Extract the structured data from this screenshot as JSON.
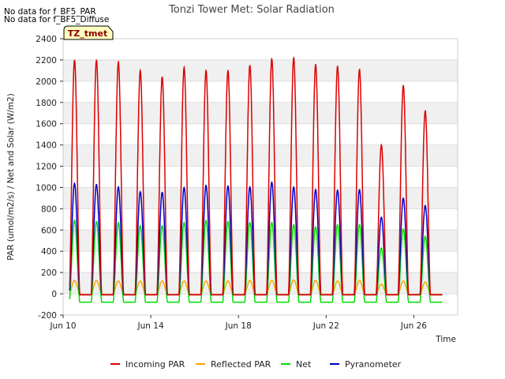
{
  "notes": [
    "No data for f_BF5_PAR",
    "No data for f_BF5_Diffuse"
  ],
  "tag": "TZ_tmet",
  "chart_data": {
    "type": "line",
    "title": "Tonzi Tower Met: Solar Radiation",
    "xlabel": "Time",
    "ylabel": "PAR (umol/m2/s) / Net and Solar (W/m2)",
    "ylim": [
      -200,
      2400
    ],
    "yticks": [
      -200,
      0,
      200,
      400,
      600,
      800,
      1000,
      1200,
      1400,
      1600,
      1800,
      2000,
      2200,
      2400
    ],
    "xlim": [
      "Jun 10",
      "Jun 28"
    ],
    "xticks": [
      "Jun 10",
      "Jun 14",
      "Jun 18",
      "Jun 22",
      "Jun 26"
    ],
    "grid": true,
    "legend_position": "bottom",
    "days": [
      "Jun 10",
      "Jun 11",
      "Jun 12",
      "Jun 13",
      "Jun 14",
      "Jun 15",
      "Jun 16",
      "Jun 17",
      "Jun 18",
      "Jun 19",
      "Jun 20",
      "Jun 21",
      "Jun 22",
      "Jun 23",
      "Jun 24",
      "Jun 25",
      "Jun 26",
      "Jun 27"
    ],
    "series": [
      {
        "name": "Incoming PAR",
        "color": "#dd0000",
        "night": -10,
        "daily_peak": [
          2200,
          2200,
          2180,
          2100,
          2040,
          2130,
          2100,
          2100,
          2150,
          2210,
          2220,
          2160,
          2140,
          2110,
          1400,
          1960,
          1720,
          0
        ]
      },
      {
        "name": "Reflected PAR",
        "color": "#ffa500",
        "night": -5,
        "daily_peak": [
          125,
          125,
          120,
          120,
          120,
          120,
          120,
          120,
          125,
          125,
          130,
          125,
          120,
          125,
          90,
          120,
          110,
          0
        ]
      },
      {
        "name": "Net",
        "color": "#00dd00",
        "night": -80,
        "daily_peak": [
          690,
          680,
          670,
          640,
          640,
          670,
          690,
          680,
          670,
          670,
          650,
          630,
          650,
          650,
          430,
          610,
          540,
          0
        ]
      },
      {
        "name": "Pyranometer",
        "color": "#0000cc",
        "night": -10,
        "daily_peak": [
          1040,
          1030,
          1005,
          960,
          955,
          1000,
          1020,
          1015,
          1005,
          1050,
          1005,
          980,
          975,
          980,
          720,
          900,
          830,
          0
        ]
      }
    ]
  }
}
